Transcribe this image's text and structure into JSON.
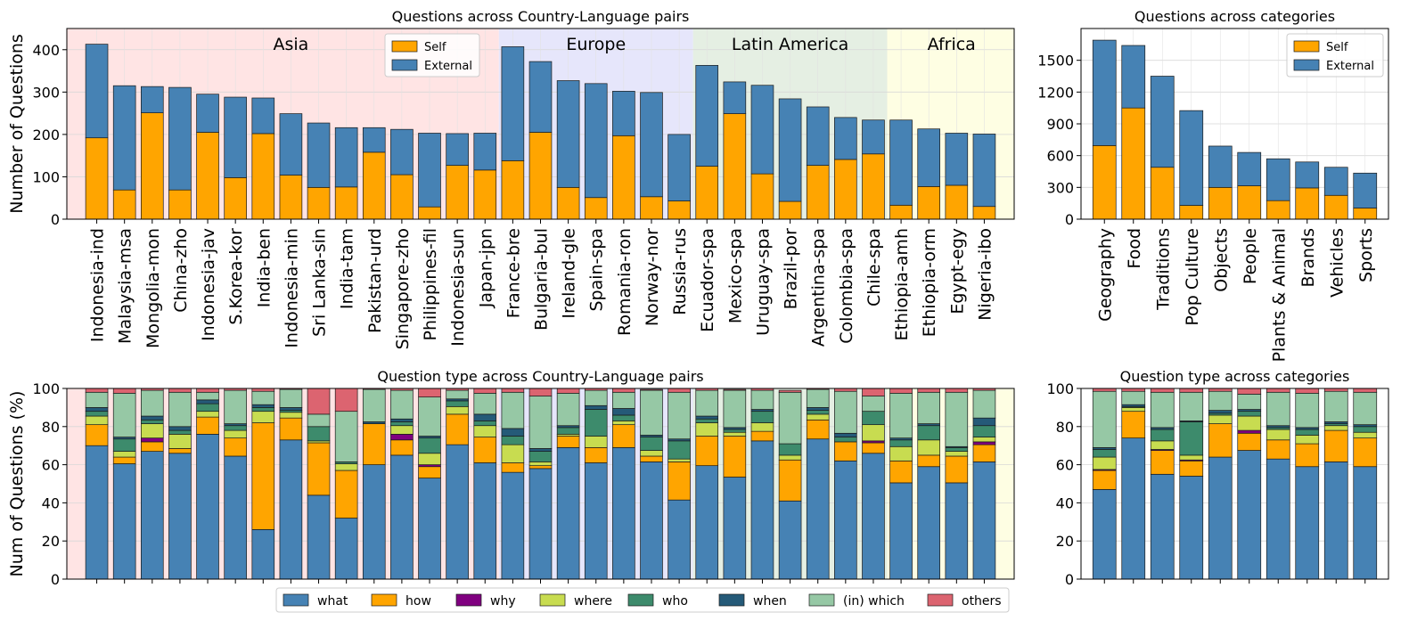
{
  "chart_data": [
    {
      "id": "p1",
      "type": "bar",
      "stacked": true,
      "title": "Questions across Country-Language pairs",
      "ylabel": "Number of Questions",
      "ylim": [
        0,
        450
      ],
      "yticks": [
        0,
        100,
        200,
        300,
        400
      ],
      "grid": true,
      "legend_position": "upper center",
      "categories": [
        "Indonesia-ind",
        "Malaysia-msa",
        "Mongolia-mon",
        "China-zho",
        "Indonesia-jav",
        "S.Korea-kor",
        "India-ben",
        "Indonesia-min",
        "Sri Lanka-sin",
        "India-tam",
        "Pakistan-urd",
        "Singapore-zho",
        "Philippines-fil",
        "Indonesia-sun",
        "Japan-jpn",
        "France-bre",
        "Bulgaria-bul",
        "Ireland-gle",
        "Spain-spa",
        "Romania-ron",
        "Norway-nor",
        "Russia-rus",
        "Ecuador-spa",
        "Mexico-spa",
        "Uruguay-spa",
        "Brazil-por",
        "Argentina-spa",
        "Colombia-spa",
        "Chile-spa",
        "Ethiopia-amh",
        "Ethiopia-orm",
        "Egypt-egy",
        "Nigeria-ibo"
      ],
      "regions": [
        {
          "name": "Asia",
          "first": 0,
          "last": 14,
          "color": "#ffe4e4"
        },
        {
          "name": "Europe",
          "first": 15,
          "last": 21,
          "color": "#e6e6fb"
        },
        {
          "name": "Latin America",
          "first": 22,
          "last": 28,
          "color": "#e5efe3"
        },
        {
          "name": "Africa",
          "first": 29,
          "last": 32,
          "color": "#fefee3"
        }
      ],
      "series": [
        {
          "name": "Self",
          "color": "#ffa500",
          "values": [
            192,
            69,
            251,
            69,
            205,
            98,
            202,
            104,
            75,
            76,
            158,
            105,
            29,
            127,
            116,
            138,
            205,
            75,
            51,
            197,
            53,
            43,
            125,
            249,
            107,
            42,
            127,
            141,
            154,
            33,
            77,
            80,
            30
          ]
        },
        {
          "name": "External",
          "color": "#4682b4",
          "values": [
            221,
            246,
            62,
            242,
            90,
            190,
            84,
            145,
            152,
            140,
            58,
            107,
            174,
            75,
            87,
            269,
            167,
            252,
            269,
            105,
            246,
            157,
            238,
            75,
            209,
            242,
            138,
            99,
            80,
            201,
            136,
            123,
            171
          ]
        }
      ]
    },
    {
      "id": "p2",
      "type": "bar",
      "stacked": true,
      "title": "Questions across categories",
      "ylim": [
        0,
        1800
      ],
      "yticks": [
        0,
        300,
        600,
        900,
        1200,
        1500
      ],
      "grid": true,
      "legend_position": "upper right",
      "categories": [
        "Geography",
        "Food",
        "Traditions",
        "Pop Culture",
        "Objects",
        "People",
        "Plants & Animal",
        "Brands",
        "Vehicles",
        "Sports"
      ],
      "series": [
        {
          "name": "Self",
          "color": "#ffa500",
          "values": [
            695,
            1050,
            490,
            130,
            300,
            315,
            175,
            295,
            225,
            105
          ]
        },
        {
          "name": "External",
          "color": "#4682b4",
          "values": [
            995,
            590,
            860,
            895,
            390,
            315,
            395,
            245,
            265,
            330
          ]
        }
      ]
    },
    {
      "id": "p3",
      "type": "bar",
      "stacked": true,
      "title": "Question type across Country-Language pairs",
      "ylabel": "Num of Questions (%)",
      "ylim": [
        0,
        100
      ],
      "yticks": [
        0,
        20,
        40,
        60,
        80,
        100
      ],
      "grid": true,
      "categories": [
        "Indonesia-ind",
        "Malaysia-msa",
        "Mongolia-mon",
        "China-zho",
        "Indonesia-jav",
        "S.Korea-kor",
        "India-ben",
        "Indonesia-min",
        "Sri Lanka-sin",
        "India-tam",
        "Pakistan-urd",
        "Singapore-zho",
        "Philippines-fil",
        "Indonesia-sun",
        "Japan-jpn",
        "France-bre",
        "Bulgaria-bul",
        "Ireland-gle",
        "Spain-spa",
        "Romania-ron",
        "Norway-nor",
        "Russia-rus",
        "Ecuador-spa",
        "Mexico-spa",
        "Uruguay-spa",
        "Brazil-por",
        "Argentina-spa",
        "Colombia-spa",
        "Chile-spa",
        "Ethiopia-amh",
        "Ethiopia-orm",
        "Egypt-egy",
        "Nigeria-ibo"
      ],
      "series": [
        {
          "name": "what",
          "color": "#4682b4",
          "values": [
            70,
            60.5,
            67,
            66,
            76,
            64.5,
            26,
            73,
            44,
            32,
            60,
            65,
            53,
            70.5,
            61,
            56,
            58,
            69,
            61,
            69,
            61.5,
            41.5,
            59.5,
            53.5,
            72.5,
            41,
            73.5,
            62,
            66,
            50.5,
            59,
            50.5,
            61.5
          ]
        },
        {
          "name": "how",
          "color": "#ffa500",
          "values": [
            11,
            3.5,
            5,
            2.5,
            9,
            9.5,
            56,
            11.5,
            27.5,
            25,
            21.5,
            8,
            6,
            16,
            13.5,
            5,
            1.5,
            6,
            8,
            12,
            3,
            20,
            15.5,
            21.5,
            5,
            21.5,
            10,
            10,
            5.5,
            11.5,
            6,
            14,
            9
          ]
        },
        {
          "name": "why",
          "color": "#800080",
          "values": [
            0,
            0,
            2,
            0,
            0,
            0,
            0,
            0,
            0,
            0,
            0,
            3,
            1,
            0,
            0,
            0,
            0,
            0,
            0,
            0,
            0,
            0,
            0,
            0,
            0,
            0,
            0,
            0,
            1,
            0,
            0,
            0,
            1.5
          ]
        },
        {
          "name": "where",
          "color": "#c8dc50",
          "values": [
            4.5,
            3,
            7.5,
            7.5,
            3,
            4,
            6,
            3,
            1,
            3.5,
            0,
            4.5,
            6,
            4,
            6,
            9.5,
            2,
            1,
            6,
            2,
            3,
            1.5,
            7,
            2,
            4.5,
            2.5,
            3,
            0,
            8.5,
            7.5,
            8,
            2.5,
            2.5
          ]
        },
        {
          "name": "who",
          "color": "#3d8b6c",
          "values": [
            2.5,
            6.5,
            2,
            2,
            4,
            2.5,
            2,
            1,
            7.5,
            1,
            0,
            2,
            8,
            3,
            2.5,
            4.5,
            5.5,
            3.5,
            14,
            3,
            7,
            9.5,
            2,
            1.5,
            6,
            6,
            2,
            2.5,
            7,
            3.5,
            7.5,
            2,
            6
          ]
        },
        {
          "name": "when",
          "color": "#255a78",
          "values": [
            2,
            1,
            2,
            2,
            2,
            1,
            1.5,
            1.5,
            0,
            0,
            1,
            1.5,
            1,
            1,
            3.5,
            4,
            1.5,
            1,
            2,
            3.5,
            1,
            1,
            1.5,
            1,
            1,
            0,
            1.5,
            2,
            0,
            1,
            1,
            0.5,
            4
          ]
        },
        {
          "name": "(in) which",
          "color": "#96c8a5",
          "values": [
            8,
            23,
            13.5,
            18,
            4,
            17.5,
            7,
            9.5,
            6.5,
            26.5,
            17,
            15,
            20.5,
            4.5,
            11,
            19,
            27.5,
            17,
            8,
            8.5,
            23.5,
            24.5,
            13.5,
            19.5,
            10,
            27,
            9.5,
            22,
            8,
            23.5,
            16.5,
            28.5,
            14.5
          ]
        },
        {
          "name": "others",
          "color": "#dc6470",
          "values": [
            2,
            2.5,
            1,
            2,
            2,
            1,
            1.5,
            0.5,
            13.5,
            12,
            0.5,
            1,
            4.5,
            1,
            2.5,
            2,
            4,
            2.5,
            1,
            2,
            0.5,
            2,
            1,
            0.5,
            1,
            1,
            0.5,
            1.5,
            4,
            2.5,
            2,
            2,
            1
          ]
        }
      ]
    },
    {
      "id": "p4",
      "type": "bar",
      "stacked": true,
      "title": "Question type across categories",
      "ylim": [
        0,
        100
      ],
      "yticks": [
        0,
        20,
        40,
        60,
        80,
        100
      ],
      "grid": true,
      "categories": [
        "Geography",
        "Food",
        "Traditions",
        "Pop Culture",
        "Objects",
        "People",
        "Plants & Animal",
        "Brands",
        "Vehicles",
        "Sports"
      ],
      "series": [
        {
          "name": "what",
          "color": "#4682b4",
          "values": [
            47,
            74,
            55,
            54,
            64,
            67.5,
            63,
            59,
            61.5,
            59
          ]
        },
        {
          "name": "how",
          "color": "#ffa500",
          "values": [
            10,
            14,
            12.5,
            8,
            17.5,
            9,
            10,
            12,
            16.5,
            15
          ]
        },
        {
          "name": "why",
          "color": "#800080",
          "values": [
            0.5,
            0,
            0.5,
            0.5,
            0,
            1.5,
            0,
            0,
            0,
            0
          ]
        },
        {
          "name": "where",
          "color": "#c8dc50",
          "values": [
            6.5,
            2,
            4.5,
            2.5,
            4.5,
            7.5,
            5.5,
            4.5,
            2.5,
            3
          ]
        },
        {
          "name": "who",
          "color": "#3d8b6c",
          "values": [
            4,
            0.5,
            6,
            17.5,
            1,
            2.5,
            1,
            3,
            1,
            3
          ]
        },
        {
          "name": "when",
          "color": "#255a78",
          "values": [
            1,
            1,
            1,
            0.5,
            1.5,
            1,
            1,
            1,
            1,
            1
          ]
        },
        {
          "name": "(in) which",
          "color": "#96c8a5",
          "values": [
            29.5,
            7,
            18.5,
            15,
            10,
            8,
            17.5,
            18,
            16,
            17
          ]
        },
        {
          "name": "others",
          "color": "#dc6470",
          "values": [
            1.5,
            1.5,
            2,
            2,
            1.5,
            3,
            2,
            2.5,
            1.5,
            2
          ]
        }
      ]
    }
  ]
}
